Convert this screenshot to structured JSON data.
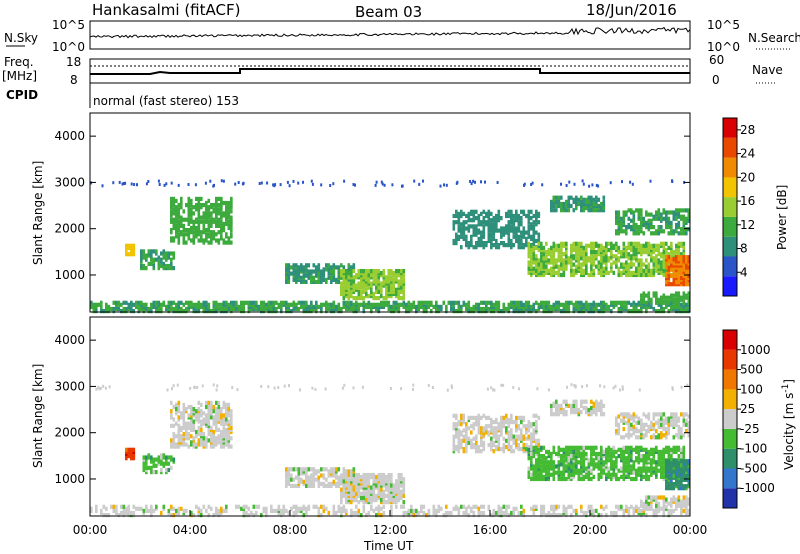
{
  "header": {
    "station": "Hankasalmi (fitACF)",
    "beam": "Beam 03",
    "date": "18/Jun/2016"
  },
  "nsky_panel": {
    "left_label": "N.Sky",
    "right_label": "N.Search",
    "left_ticks": [
      "10^5",
      "10^0"
    ],
    "right_ticks": [
      "10^5",
      "10^0"
    ]
  },
  "freq_panel": {
    "left_label_1": "Freq.",
    "left_label_2": "[MHz]",
    "right_label": "Nave",
    "left_ticks": [
      "18",
      "8"
    ],
    "right_ticks": [
      "60",
      "0"
    ]
  },
  "cpid_panel": {
    "label": "CPID",
    "text": "normal (fast stereo) 153"
  },
  "chart_data": [
    {
      "type": "heatmap",
      "title": "",
      "ylabel": "Slant Range [km]",
      "xlabel": "",
      "ylim": [
        200,
        4500
      ],
      "xlim": [
        0,
        24
      ],
      "yticks": [
        "1000",
        "2000",
        "3000",
        "4000"
      ],
      "colorbar": {
        "label": "Power [dB]",
        "range": [
          0,
          30
        ],
        "ticks": [
          "4",
          "8",
          "12",
          "16",
          "20",
          "24",
          "28"
        ],
        "colors": [
          "#1a1aff",
          "#2a55c8",
          "#2e8f7a",
          "#3daa3d",
          "#9acd32",
          "#f2c400",
          "#f08a00",
          "#e84800",
          "#d80000"
        ]
      },
      "regions": [
        {
          "t0": 0.0,
          "t1": 24.0,
          "r0": 220,
          "r1": 420,
          "level": 10,
          "density": 0.6
        },
        {
          "t0": 3.2,
          "t1": 5.6,
          "r0": 1700,
          "r1": 2650,
          "level": 12,
          "density": 0.55
        },
        {
          "t0": 1.4,
          "t1": 1.8,
          "r0": 1450,
          "r1": 1650,
          "level": 18,
          "density": 0.8
        },
        {
          "t0": 2.0,
          "t1": 3.4,
          "r0": 1150,
          "r1": 1550,
          "level": 10,
          "density": 0.5
        },
        {
          "t0": 7.8,
          "t1": 10.5,
          "r0": 850,
          "r1": 1250,
          "level": 9,
          "density": 0.6
        },
        {
          "t0": 10.0,
          "t1": 12.5,
          "r0": 500,
          "r1": 1100,
          "level": 14,
          "density": 0.7
        },
        {
          "t0": 14.5,
          "t1": 18.0,
          "r0": 1600,
          "r1": 2400,
          "level": 8,
          "density": 0.45
        },
        {
          "t0": 17.5,
          "t1": 23.8,
          "r0": 1000,
          "r1": 1700,
          "level": 14,
          "density": 0.6
        },
        {
          "t0": 18.4,
          "t1": 20.6,
          "r0": 2400,
          "r1": 2700,
          "level": 9,
          "density": 0.55
        },
        {
          "t0": 21.0,
          "t1": 24.0,
          "r0": 1900,
          "r1": 2400,
          "level": 10,
          "density": 0.5
        },
        {
          "t0": 23.0,
          "t1": 24.0,
          "r0": 800,
          "r1": 1400,
          "level": 24,
          "density": 0.8
        },
        {
          "t0": 22.0,
          "t1": 24.0,
          "r0": 420,
          "r1": 620,
          "level": 12,
          "density": 0.6
        }
      ]
    },
    {
      "type": "heatmap",
      "title": "",
      "ylabel": "Slant Range [km]",
      "xlabel": "Time UT",
      "ylim": [
        200,
        4500
      ],
      "xlim": [
        0,
        24
      ],
      "yticks": [
        "1000",
        "2000",
        "3000",
        "4000"
      ],
      "xticks": [
        "00:00",
        "04:00",
        "08:00",
        "12:00",
        "16:00",
        "20:00",
        "00:00"
      ],
      "colorbar": {
        "label": "Velocity [m s^-1]",
        "ticks": [
          "1000",
          "500",
          "100",
          "25",
          "-25",
          "-100",
          "-500",
          "-1000"
        ],
        "colors": [
          "#2233aa",
          "#3377cc",
          "#2e8f6a",
          "#44bb33",
          "#cccccc",
          "#f2b000",
          "#f07800",
          "#e83800",
          "#d80000"
        ]
      },
      "regions": [
        {
          "t0": 0.0,
          "t1": 24.0,
          "r0": 220,
          "r1": 420,
          "level": 4,
          "density": 0.35
        },
        {
          "t0": 3.2,
          "t1": 5.6,
          "r0": 1700,
          "r1": 2650,
          "level": 4,
          "density": 0.55
        },
        {
          "t0": 1.4,
          "t1": 1.8,
          "r0": 1450,
          "r1": 1650,
          "level": 7,
          "density": 0.8
        },
        {
          "t0": 2.0,
          "t1": 3.4,
          "r0": 1150,
          "r1": 1550,
          "level": 3,
          "density": 0.5
        },
        {
          "t0": 7.8,
          "t1": 10.5,
          "r0": 850,
          "r1": 1250,
          "level": 4,
          "density": 0.6
        },
        {
          "t0": 10.0,
          "t1": 12.5,
          "r0": 500,
          "r1": 1100,
          "level": 4,
          "density": 0.7
        },
        {
          "t0": 14.5,
          "t1": 18.0,
          "r0": 1600,
          "r1": 2400,
          "level": 4,
          "density": 0.45
        },
        {
          "t0": 17.5,
          "t1": 23.8,
          "r0": 1000,
          "r1": 1700,
          "level": 3,
          "density": 0.6
        },
        {
          "t0": 18.4,
          "t1": 20.6,
          "r0": 2400,
          "r1": 2700,
          "level": 4,
          "density": 0.55
        },
        {
          "t0": 21.0,
          "t1": 24.0,
          "r0": 1900,
          "r1": 2400,
          "level": 4,
          "density": 0.5
        },
        {
          "t0": 23.0,
          "t1": 24.0,
          "r0": 800,
          "r1": 1400,
          "level": 2,
          "density": 0.8
        },
        {
          "t0": 22.0,
          "t1": 24.0,
          "r0": 420,
          "r1": 620,
          "level": 4,
          "density": 0.6
        }
      ]
    }
  ]
}
